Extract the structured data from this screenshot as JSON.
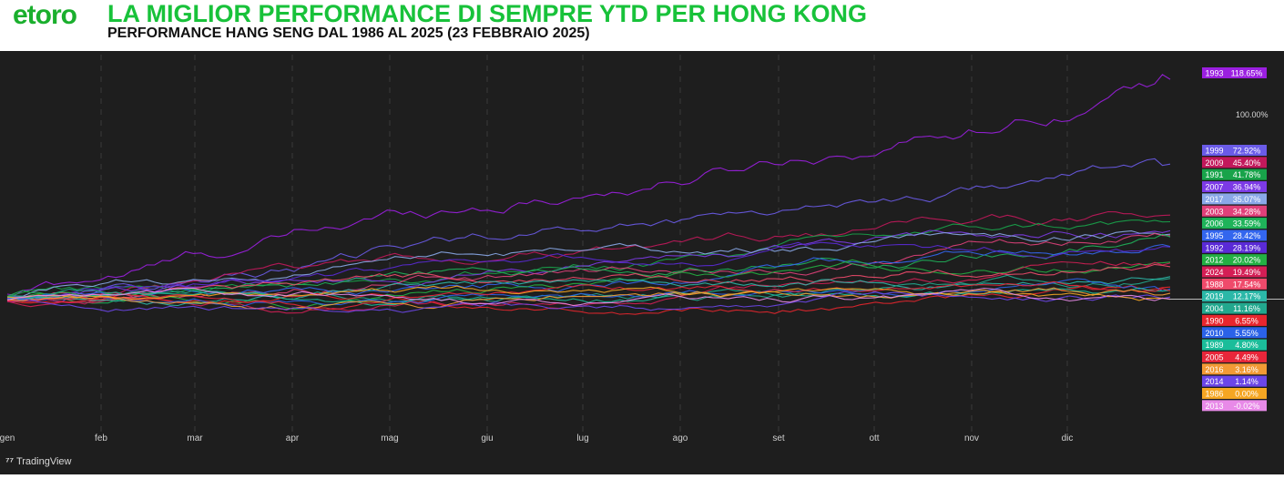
{
  "header": {
    "logo": "etoro",
    "title": "LA MIGLIOR PERFORMANCE DI SEMPRE YTD PER HONG KONG",
    "subtitle": "PERFORMANCE HANG SENG DAL 1986 AL 2025 (23 FEBBRAIO 2025)"
  },
  "footer": {
    "brand": "TradingView"
  },
  "colors": {
    "background": "#1e1e1e",
    "title": "#18c23a",
    "grid": "#3a3a3a"
  },
  "chart_data": {
    "type": "line",
    "title": "LA MIGLIOR PERFORMANCE DI SEMPRE YTD PER HONG KONG",
    "subtitle": "PERFORMANCE HANG SENG DAL 1986 AL 2025 (23 FEBBRAIO 2025)",
    "xlabel": "",
    "ylabel": "",
    "x_ticks": [
      "gen",
      "feb",
      "mar",
      "apr",
      "mag",
      "giu",
      "lug",
      "ago",
      "set",
      "ott",
      "nov",
      "dic"
    ],
    "y_ticks": [
      "100.00%"
    ],
    "ylim": [
      -70,
      130
    ],
    "grid": true,
    "legend_position": "right",
    "series": [
      {
        "name": "1993",
        "label": "118.65%",
        "value": 118.65,
        "color": "#9b1fe0"
      },
      {
        "name": "1999",
        "label": "72.92%",
        "value": 72.92,
        "color": "#6a5be8"
      },
      {
        "name": "2009",
        "label": "45.40%",
        "value": 45.4,
        "color": "#c2185b"
      },
      {
        "name": "1991",
        "label": "41.78%",
        "value": 41.78,
        "color": "#18a34a"
      },
      {
        "name": "2007",
        "label": "36.94%",
        "value": 36.94,
        "color": "#7c3ae6"
      },
      {
        "name": "2017",
        "label": "35.07%",
        "value": 35.07,
        "color": "#8aa8e8"
      },
      {
        "name": "2003",
        "label": "34.28%",
        "value": 34.28,
        "color": "#e0407a"
      },
      {
        "name": "2006",
        "label": "33.59%",
        "value": 33.59,
        "color": "#1fb35a"
      },
      {
        "name": "1995",
        "label": "28.42%",
        "value": 28.42,
        "color": "#3366ee"
      },
      {
        "name": "1992",
        "label": "28.19%",
        "value": 28.19,
        "color": "#5a2ad6"
      },
      {
        "name": "2012",
        "label": "20.02%",
        "value": 20.02,
        "color": "#23b043"
      },
      {
        "name": "2024",
        "label": "19.49%",
        "value": 19.49,
        "color": "#d41e55"
      },
      {
        "name": "1988",
        "label": "17.54%",
        "value": 17.54,
        "color": "#ef4a6b"
      },
      {
        "name": "2019",
        "label": "12.17%",
        "value": 12.17,
        "color": "#2bb8a8"
      },
      {
        "name": "2004",
        "label": "11.16%",
        "value": 11.16,
        "color": "#22a88e"
      },
      {
        "name": "1990",
        "label": "6.55%",
        "value": 6.55,
        "color": "#e8262e"
      },
      {
        "name": "2010",
        "label": "5.55%",
        "value": 5.55,
        "color": "#2b62e8"
      },
      {
        "name": "1989",
        "label": "4.80%",
        "value": 4.8,
        "color": "#1bbd9a"
      },
      {
        "name": "2005",
        "label": "4.49%",
        "value": 4.49,
        "color": "#e8263a"
      },
      {
        "name": "2016",
        "label": "3.16%",
        "value": 3.16,
        "color": "#f29a35"
      },
      {
        "name": "2014",
        "label": "1.14%",
        "value": 1.14,
        "color": "#6b46e8"
      },
      {
        "name": "1986",
        "label": "0.00%",
        "value": 0.0,
        "color": "#f5a623"
      },
      {
        "name": "2013",
        "label": "-0.02%",
        "value": -0.02,
        "color": "#e88ae8"
      }
    ]
  }
}
